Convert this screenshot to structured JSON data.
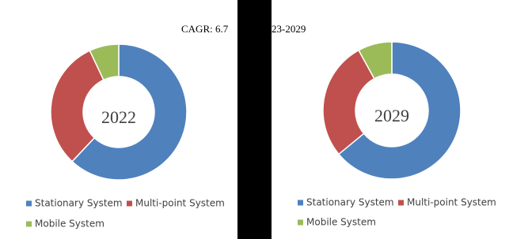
{
  "header": {
    "title_parts": [
      "CAGR: 6.7",
      "23-2029"
    ]
  },
  "chart_data": [
    {
      "type": "donut",
      "center_label": "2022",
      "categories": [
        "Stationary System",
        "Multi-point System",
        "Mobile System"
      ],
      "values": [
        62,
        31,
        7
      ],
      "colors": [
        "#4f81bd",
        "#c0504d",
        "#9bbb59"
      ]
    },
    {
      "type": "donut",
      "center_label": "2029",
      "categories": [
        "Stationary System",
        "Multi-point System",
        "Mobile System"
      ],
      "values": [
        64,
        28,
        8
      ],
      "colors": [
        "#4f81bd",
        "#c0504d",
        "#9bbb59"
      ]
    }
  ]
}
